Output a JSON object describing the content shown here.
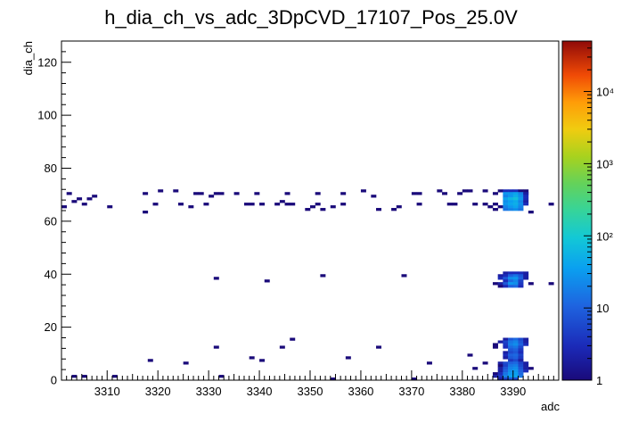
{
  "chart_data": {
    "type": "heatmap",
    "title": "h_dia_ch_vs_adc_3DpCVD_17107_Pos_25.0V",
    "xlabel": "adc",
    "ylabel": "dia_ch",
    "xlim": [
      3301,
      3399
    ],
    "ylim": [
      0,
      128
    ],
    "x_ticks": [
      3310,
      3320,
      3330,
      3340,
      3350,
      3360,
      3370,
      3380,
      3390
    ],
    "y_ticks": [
      0,
      20,
      40,
      60,
      80,
      100,
      120
    ],
    "colorbar": {
      "scale": "log",
      "range": [
        1,
        50000
      ],
      "tick_labels": [
        {
          "value": 1,
          "text": "1"
        },
        {
          "value": 10,
          "text": "10"
        },
        {
          "value": 100,
          "text": "10²"
        },
        {
          "value": 1000,
          "text": "10³"
        },
        {
          "value": 10000,
          "text": "10⁴"
        }
      ]
    },
    "grid": false,
    "bins": [
      [
        3301,
        65,
        1
      ],
      [
        3302,
        70,
        1
      ],
      [
        3303,
        67,
        1
      ],
      [
        3304,
        68,
        1
      ],
      [
        3305,
        66,
        1
      ],
      [
        3306,
        68,
        1
      ],
      [
        3307,
        69,
        1
      ],
      [
        3310,
        65,
        1
      ],
      [
        3317,
        70,
        1
      ],
      [
        3317,
        63,
        1
      ],
      [
        3319,
        66,
        1
      ],
      [
        3320,
        71,
        1
      ],
      [
        3323,
        71,
        1
      ],
      [
        3324,
        66,
        1
      ],
      [
        3326,
        65,
        1
      ],
      [
        3327,
        70,
        1
      ],
      [
        3328,
        70,
        1
      ],
      [
        3329,
        66,
        1
      ],
      [
        3330,
        69,
        1
      ],
      [
        3331,
        70,
        1
      ],
      [
        3332,
        70,
        1
      ],
      [
        3335,
        70,
        1
      ],
      [
        3337,
        66,
        1
      ],
      [
        3338,
        66,
        1
      ],
      [
        3339,
        70,
        1
      ],
      [
        3340,
        66,
        1
      ],
      [
        3343,
        66,
        1
      ],
      [
        3344,
        67,
        1
      ],
      [
        3345,
        70,
        1
      ],
      [
        3345,
        66,
        1
      ],
      [
        3346,
        66,
        1
      ],
      [
        3349,
        64,
        1
      ],
      [
        3350,
        65,
        1
      ],
      [
        3351,
        66,
        1
      ],
      [
        3351,
        70,
        1
      ],
      [
        3352,
        64,
        1
      ],
      [
        3354,
        65,
        1
      ],
      [
        3356,
        70,
        1
      ],
      [
        3356,
        66,
        1
      ],
      [
        3360,
        71,
        1
      ],
      [
        3362,
        69,
        1
      ],
      [
        3363,
        64,
        1
      ],
      [
        3366,
        64,
        1
      ],
      [
        3367,
        65,
        1
      ],
      [
        3370,
        70,
        1
      ],
      [
        3371,
        66,
        1
      ],
      [
        3371,
        70,
        1
      ],
      [
        3375,
        71,
        1
      ],
      [
        3376,
        70,
        1
      ],
      [
        3377,
        66,
        1
      ],
      [
        3378,
        66,
        1
      ],
      [
        3379,
        70,
        1
      ],
      [
        3380,
        71,
        1
      ],
      [
        3381,
        71,
        1
      ],
      [
        3382,
        66,
        1
      ],
      [
        3384,
        71,
        1
      ],
      [
        3384,
        66,
        1
      ],
      [
        3385,
        65,
        1
      ],
      [
        3386,
        66,
        1
      ],
      [
        3386,
        64,
        1
      ],
      [
        3386,
        70,
        1
      ],
      [
        3387,
        71,
        1
      ],
      [
        3387,
        65,
        1
      ],
      [
        3392,
        70,
        1
      ],
      [
        3393,
        63,
        1
      ],
      [
        3397,
        66,
        1
      ],
      [
        3388,
        71,
        3
      ],
      [
        3389,
        71,
        3
      ],
      [
        3390,
        71,
        3
      ],
      [
        3391,
        71,
        1
      ],
      [
        3392,
        71,
        1
      ],
      [
        3388,
        70,
        30
      ],
      [
        3389,
        70,
        30
      ],
      [
        3390,
        70,
        40
      ],
      [
        3391,
        70,
        20
      ],
      [
        3392,
        70,
        2
      ],
      [
        3388,
        69,
        20
      ],
      [
        3389,
        69,
        30
      ],
      [
        3390,
        69,
        50
      ],
      [
        3391,
        69,
        25
      ],
      [
        3392,
        69,
        3
      ],
      [
        3388,
        68,
        40
      ],
      [
        3389,
        68,
        60
      ],
      [
        3390,
        68,
        80
      ],
      [
        3391,
        68,
        30
      ],
      [
        3392,
        68,
        3
      ],
      [
        3388,
        67,
        25
      ],
      [
        3389,
        67,
        35
      ],
      [
        3390,
        67,
        45
      ],
      [
        3391,
        67,
        20
      ],
      [
        3392,
        67,
        2
      ],
      [
        3388,
        66,
        30
      ],
      [
        3389,
        66,
        40
      ],
      [
        3390,
        66,
        50
      ],
      [
        3391,
        66,
        25
      ],
      [
        3392,
        66,
        3
      ],
      [
        3388,
        65,
        20
      ],
      [
        3389,
        65,
        30
      ],
      [
        3390,
        65,
        40
      ],
      [
        3391,
        65,
        20
      ],
      [
        3388,
        64,
        15
      ],
      [
        3389,
        64,
        20
      ],
      [
        3390,
        64,
        25
      ],
      [
        3391,
        64,
        15
      ],
      [
        3331,
        38,
        1
      ],
      [
        3341,
        37,
        1
      ],
      [
        3352,
        39,
        1
      ],
      [
        3368,
        39,
        1
      ],
      [
        3386,
        36,
        1
      ],
      [
        3393,
        36,
        1
      ],
      [
        3397,
        36,
        1
      ],
      [
        3388,
        40,
        2
      ],
      [
        3389,
        40,
        3
      ],
      [
        3390,
        40,
        3
      ],
      [
        3391,
        40,
        3
      ],
      [
        3392,
        40,
        2
      ],
      [
        3387,
        39,
        2
      ],
      [
        3388,
        39,
        3
      ],
      [
        3389,
        39,
        10
      ],
      [
        3390,
        39,
        15
      ],
      [
        3391,
        39,
        8
      ],
      [
        3392,
        39,
        2
      ],
      [
        3387,
        38,
        3
      ],
      [
        3388,
        38,
        8
      ],
      [
        3389,
        38,
        25
      ],
      [
        3390,
        38,
        30
      ],
      [
        3391,
        38,
        10
      ],
      [
        3392,
        38,
        2
      ],
      [
        3388,
        37,
        3
      ],
      [
        3389,
        37,
        12
      ],
      [
        3390,
        37,
        20
      ],
      [
        3391,
        37,
        5
      ],
      [
        3387,
        36,
        2
      ],
      [
        3388,
        36,
        8
      ],
      [
        3389,
        36,
        30
      ],
      [
        3390,
        36,
        25
      ],
      [
        3391,
        36,
        4
      ],
      [
        3387,
        35,
        1
      ],
      [
        3388,
        35,
        3
      ],
      [
        3389,
        35,
        10
      ],
      [
        3390,
        35,
        12
      ],
      [
        3391,
        35,
        3
      ],
      [
        3346,
        15,
        1
      ],
      [
        3331,
        12,
        1
      ],
      [
        3344,
        12,
        1
      ],
      [
        3363,
        12,
        1
      ],
      [
        3386,
        13,
        1
      ],
      [
        3386,
        12,
        1
      ],
      [
        3318,
        7,
        1
      ],
      [
        3325,
        6,
        1
      ],
      [
        3338,
        8,
        1
      ],
      [
        3340,
        7,
        1
      ],
      [
        3357,
        8,
        1
      ],
      [
        3373,
        6,
        1
      ],
      [
        3381,
        9,
        1
      ],
      [
        3384,
        6,
        1
      ],
      [
        3382,
        4,
        1
      ],
      [
        3393,
        4,
        1
      ],
      [
        3305,
        1,
        1
      ],
      [
        3303,
        1,
        1
      ],
      [
        3311,
        1,
        1
      ],
      [
        3332,
        1,
        1
      ],
      [
        3354,
        0,
        1
      ],
      [
        3370,
        0,
        1
      ],
      [
        3388,
        15,
        2
      ],
      [
        3389,
        15,
        8
      ],
      [
        3390,
        15,
        12
      ],
      [
        3391,
        15,
        6
      ],
      [
        3392,
        15,
        2
      ],
      [
        3387,
        14,
        2
      ],
      [
        3388,
        14,
        5
      ],
      [
        3389,
        14,
        15
      ],
      [
        3390,
        14,
        20
      ],
      [
        3391,
        14,
        8
      ],
      [
        3392,
        14,
        2
      ],
      [
        3388,
        13,
        4
      ],
      [
        3389,
        13,
        18
      ],
      [
        3390,
        13,
        25
      ],
      [
        3391,
        13,
        10
      ],
      [
        3392,
        13,
        3
      ],
      [
        3388,
        12,
        3
      ],
      [
        3389,
        12,
        12
      ],
      [
        3390,
        12,
        15
      ],
      [
        3391,
        12,
        6
      ],
      [
        3389,
        11,
        8
      ],
      [
        3390,
        11,
        10
      ],
      [
        3391,
        11,
        4
      ],
      [
        3388,
        10,
        2
      ],
      [
        3389,
        10,
        6
      ],
      [
        3390,
        10,
        8
      ],
      [
        3391,
        10,
        3
      ],
      [
        3388,
        9,
        3
      ],
      [
        3389,
        9,
        10
      ],
      [
        3390,
        9,
        12
      ],
      [
        3391,
        9,
        5
      ],
      [
        3388,
        8,
        2
      ],
      [
        3389,
        8,
        8
      ],
      [
        3390,
        8,
        10
      ],
      [
        3391,
        8,
        4
      ],
      [
        3389,
        7,
        4
      ],
      [
        3390,
        7,
        6
      ],
      [
        3391,
        7,
        2
      ],
      [
        3387,
        6,
        2
      ],
      [
        3388,
        6,
        6
      ],
      [
        3389,
        6,
        10
      ],
      [
        3390,
        6,
        12
      ],
      [
        3391,
        6,
        5
      ],
      [
        3392,
        6,
        2
      ],
      [
        3387,
        5,
        1
      ],
      [
        3388,
        5,
        5
      ],
      [
        3389,
        5,
        15
      ],
      [
        3390,
        5,
        18
      ],
      [
        3391,
        5,
        6
      ],
      [
        3392,
        5,
        2
      ],
      [
        3387,
        4,
        2
      ],
      [
        3388,
        4,
        8
      ],
      [
        3389,
        4,
        20
      ],
      [
        3390,
        4,
        25
      ],
      [
        3391,
        4,
        8
      ],
      [
        3392,
        4,
        2
      ],
      [
        3387,
        3,
        2
      ],
      [
        3388,
        3,
        10
      ],
      [
        3389,
        3,
        25
      ],
      [
        3390,
        3,
        30
      ],
      [
        3391,
        3,
        10
      ],
      [
        3392,
        3,
        3
      ],
      [
        3386,
        2,
        1
      ],
      [
        3387,
        2,
        3
      ],
      [
        3388,
        2,
        15
      ],
      [
        3389,
        2,
        30
      ],
      [
        3390,
        2,
        35
      ],
      [
        3391,
        2,
        12
      ],
      [
        3386,
        1,
        2
      ],
      [
        3387,
        1,
        4
      ],
      [
        3388,
        1,
        20
      ],
      [
        3389,
        1,
        35
      ],
      [
        3390,
        1,
        40
      ],
      [
        3391,
        1,
        15
      ],
      [
        3387,
        0,
        2
      ],
      [
        3388,
        0,
        5
      ],
      [
        3389,
        0,
        8
      ],
      [
        3390,
        0,
        6
      ]
    ]
  }
}
